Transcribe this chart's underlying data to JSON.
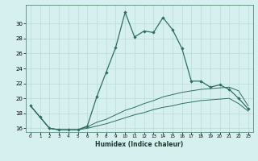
{
  "xlabel": "Humidex (Indice chaleur)",
  "bg_color": "#d6f0f0",
  "grid_color": "#c0dede",
  "line_color": "#2e6e62",
  "x_values": [
    0,
    1,
    2,
    3,
    4,
    5,
    6,
    7,
    8,
    9,
    10,
    11,
    12,
    13,
    14,
    15,
    16,
    17,
    18,
    19,
    20,
    21,
    22,
    23
  ],
  "main_y": [
    19.0,
    17.5,
    16.0,
    15.8,
    15.8,
    15.8,
    16.3,
    20.2,
    23.5,
    26.8,
    31.5,
    28.2,
    29.0,
    28.8,
    30.8,
    29.2,
    26.7,
    22.3,
    22.3,
    21.5,
    21.8,
    21.2,
    20.0,
    18.6
  ],
  "upper_y": [
    19.0,
    17.5,
    16.0,
    15.8,
    15.8,
    15.8,
    16.2,
    16.8,
    17.2,
    17.8,
    18.4,
    18.8,
    19.3,
    19.7,
    20.2,
    20.5,
    20.8,
    21.0,
    21.2,
    21.3,
    21.4,
    21.5,
    21.0,
    19.0
  ],
  "lower_y": [
    19.0,
    17.5,
    16.0,
    15.8,
    15.8,
    15.8,
    16.0,
    16.3,
    16.6,
    17.0,
    17.4,
    17.8,
    18.1,
    18.5,
    18.8,
    19.0,
    19.3,
    19.5,
    19.7,
    19.8,
    19.9,
    20.0,
    19.3,
    18.3
  ],
  "ylim": [
    15.5,
    32.5
  ],
  "yticks": [
    16,
    18,
    20,
    22,
    24,
    26,
    28,
    30
  ],
  "xticks": [
    0,
    1,
    2,
    3,
    4,
    5,
    6,
    7,
    8,
    9,
    10,
    11,
    12,
    13,
    14,
    15,
    16,
    17,
    18,
    19,
    20,
    21,
    22,
    23
  ],
  "xlim": [
    -0.5,
    23.5
  ]
}
